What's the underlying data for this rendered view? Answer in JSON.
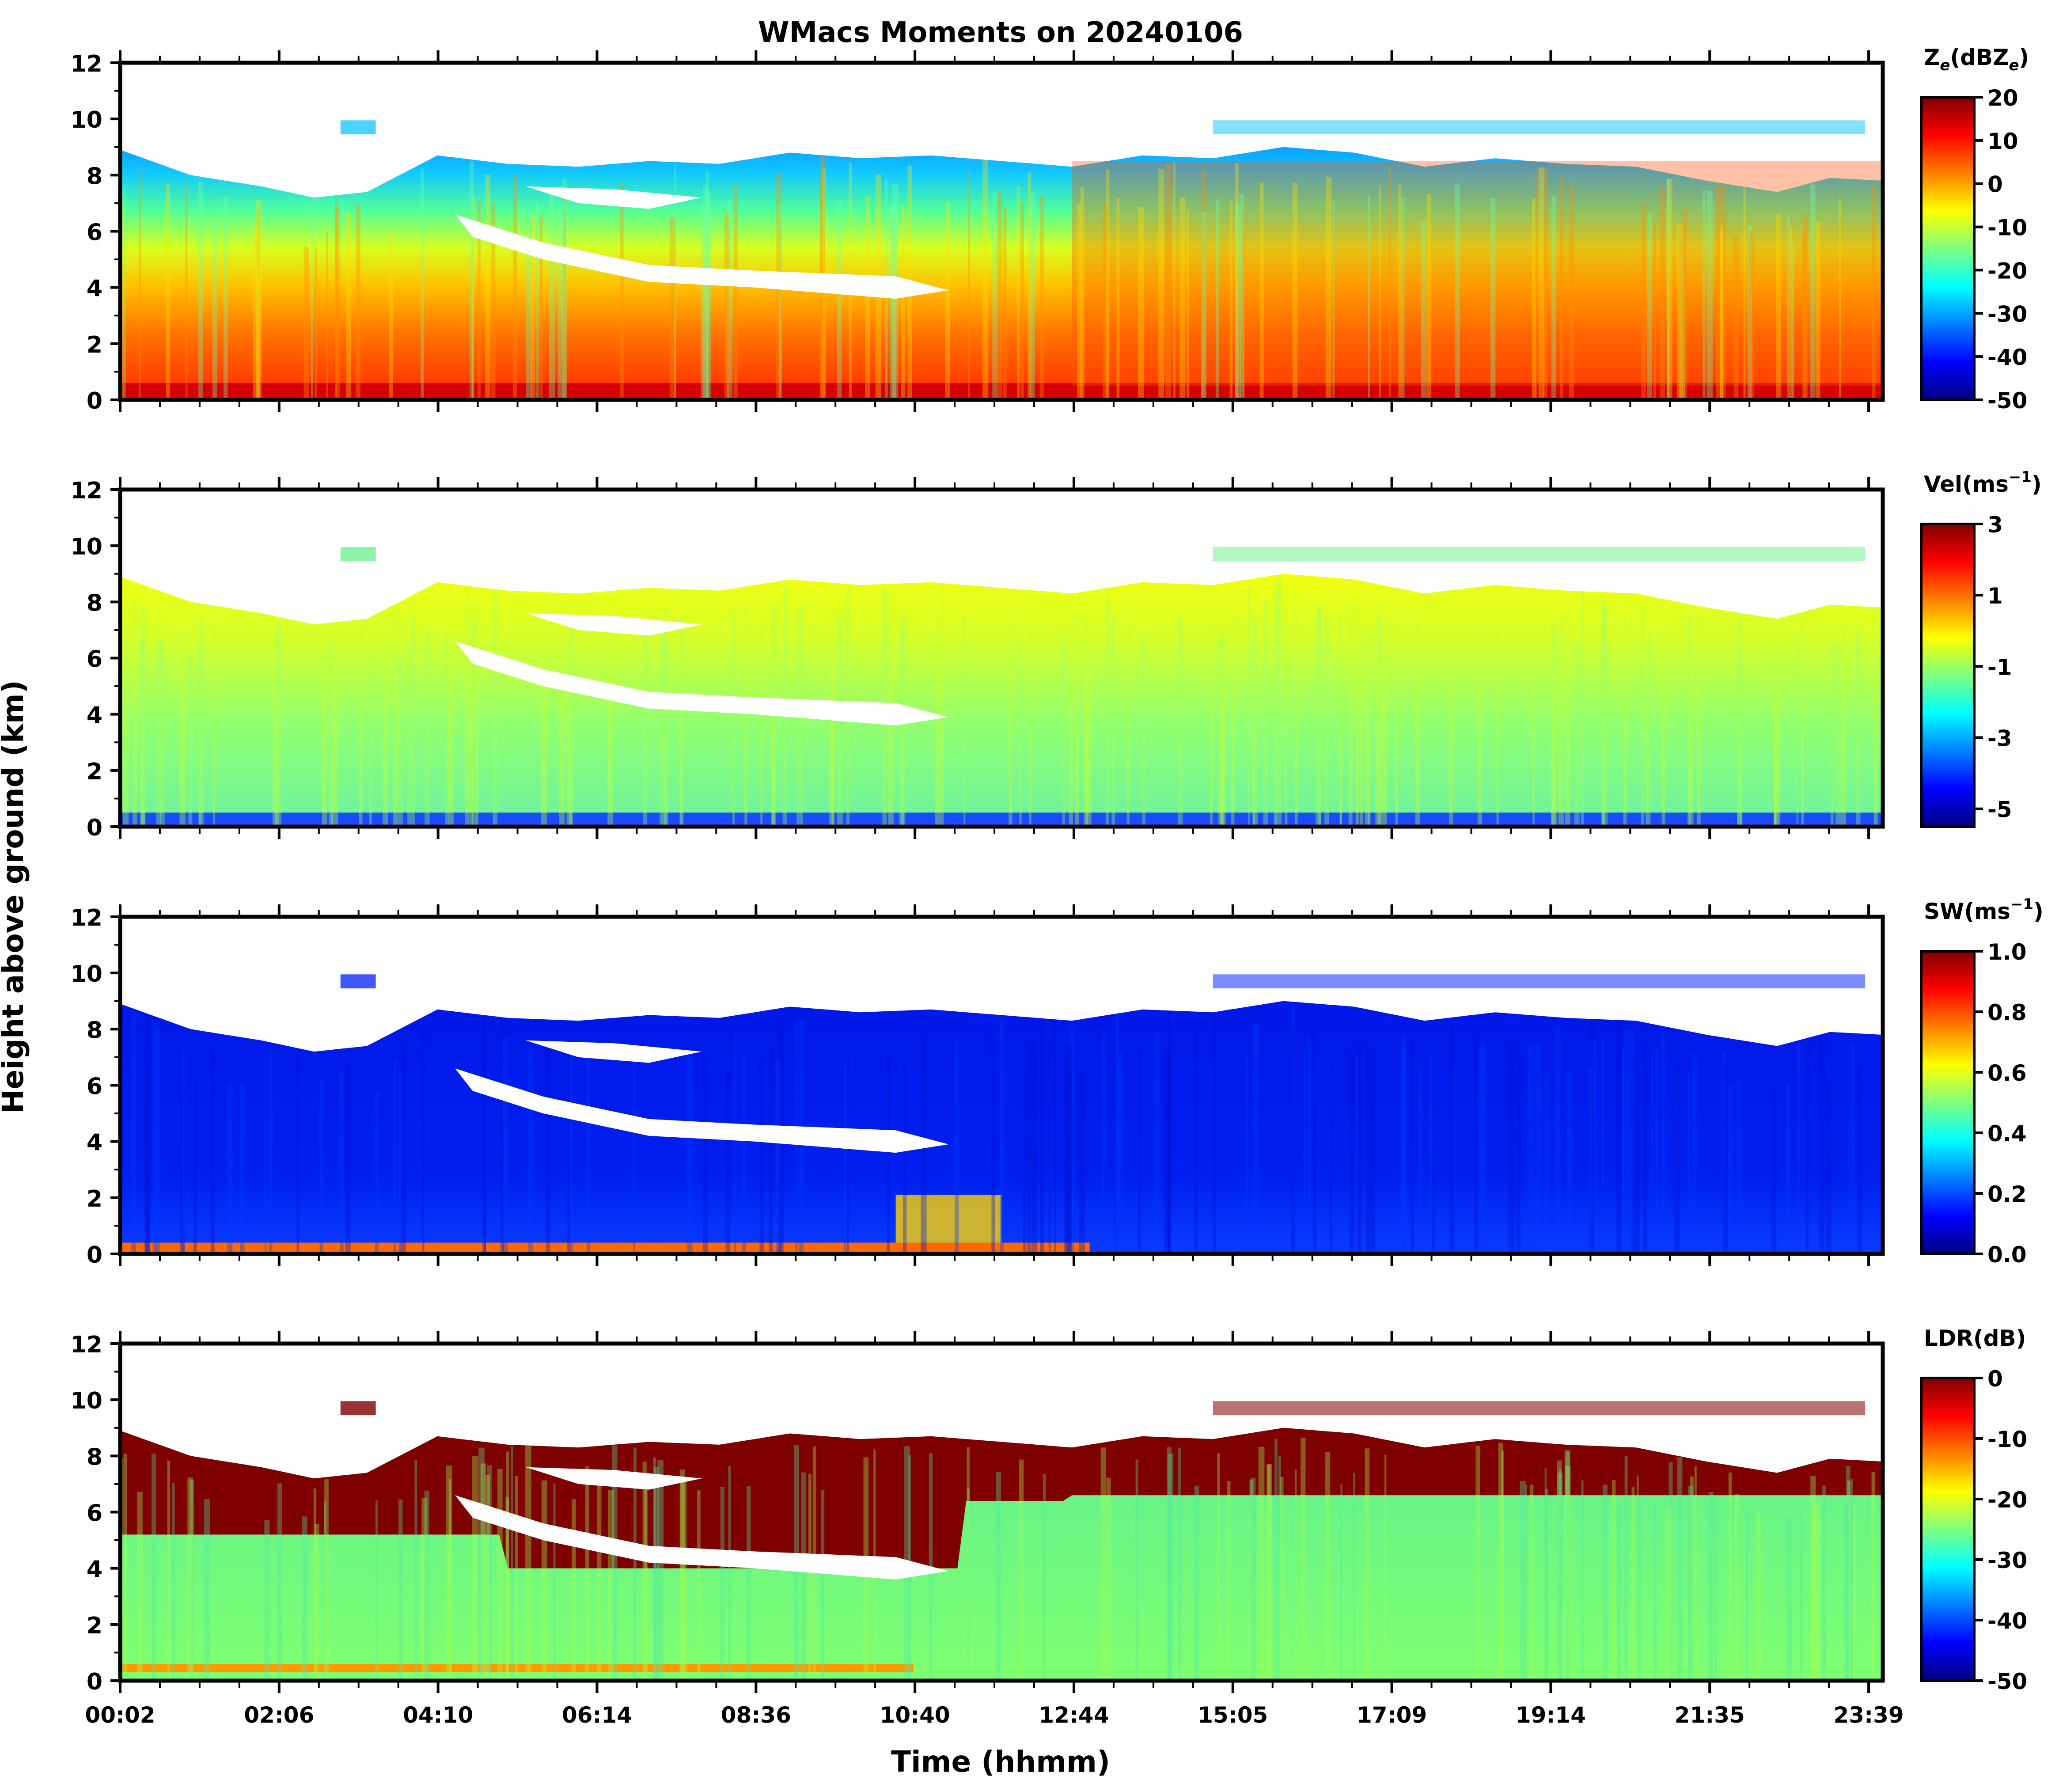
{
  "figure": {
    "title": "WMacs Moments on 20240106",
    "ylabel": "Height above ground (km)",
    "xlabel": "Time (hhmm)"
  },
  "colors": {
    "jet": [
      "#00007f",
      "#0000ff",
      "#007fff",
      "#00ffff",
      "#7fff7f",
      "#ffff00",
      "#ff7f00",
      "#ff0000",
      "#7f0000"
    ],
    "axis": "#000000",
    "background": "#ffffff"
  },
  "chart_data": [
    {
      "type": "heatmap",
      "name": "reflectivity",
      "colorbar": {
        "label_main": "Z",
        "label_sub": "e",
        "label_text": "(dBZ",
        "label_sub2": "e",
        "label_end": ")",
        "ticks": [
          "20",
          "10",
          "0",
          "-10",
          "-20",
          "-30",
          "-40",
          "-50"
        ],
        "range": [
          -50,
          20
        ]
      },
      "ylim": [
        0,
        12
      ],
      "y_ticks": [
        "0",
        "2",
        "4",
        "6",
        "8",
        "10",
        "12"
      ],
      "x_ticks": [],
      "profile": [
        {
          "t": 0.0,
          "top": 8.9
        },
        {
          "t": 0.04,
          "top": 8.0
        },
        {
          "t": 0.08,
          "top": 7.6
        },
        {
          "t": 0.11,
          "top": 7.2
        },
        {
          "t": 0.14,
          "top": 7.4
        },
        {
          "t": 0.18,
          "top": 8.7
        },
        {
          "t": 0.22,
          "top": 8.4
        },
        {
          "t": 0.26,
          "top": 8.3
        },
        {
          "t": 0.3,
          "top": 8.5
        },
        {
          "t": 0.34,
          "top": 8.4
        },
        {
          "t": 0.38,
          "top": 8.8
        },
        {
          "t": 0.42,
          "top": 8.6
        },
        {
          "t": 0.46,
          "top": 8.7
        },
        {
          "t": 0.5,
          "top": 8.5
        },
        {
          "t": 0.54,
          "top": 8.3
        },
        {
          "t": 0.58,
          "top": 8.7
        },
        {
          "t": 0.62,
          "top": 8.6
        },
        {
          "t": 0.66,
          "top": 9.0
        },
        {
          "t": 0.7,
          "top": 8.8
        },
        {
          "t": 0.74,
          "top": 8.3
        },
        {
          "t": 0.78,
          "top": 8.6
        },
        {
          "t": 0.82,
          "top": 8.4
        },
        {
          "t": 0.86,
          "top": 8.3
        },
        {
          "t": 0.9,
          "top": 7.8
        },
        {
          "t": 0.94,
          "top": 7.4
        },
        {
          "t": 0.97,
          "top": 7.9
        },
        {
          "t": 1.0,
          "top": 7.8
        }
      ]
    },
    {
      "type": "heatmap",
      "name": "velocity",
      "colorbar": {
        "label_main": "Vel(ms",
        "label_sup": "−1",
        "label_end": ")",
        "ticks": [
          "3",
          "1",
          "-1",
          "-3",
          "-5"
        ],
        "range": [
          -5.5,
          3
        ]
      },
      "ylim": [
        0,
        12
      ],
      "y_ticks": [
        "0",
        "2",
        "4",
        "6",
        "8",
        "10",
        "12"
      ],
      "x_ticks": []
    },
    {
      "type": "heatmap",
      "name": "spectrum_width",
      "colorbar": {
        "label_main": "SW(ms",
        "label_sup": "−1",
        "label_end": ")",
        "ticks": [
          "1.0",
          "0.8",
          "0.6",
          "0.4",
          "0.2",
          "0.0"
        ],
        "range": [
          0,
          1
        ]
      },
      "ylim": [
        0,
        12
      ],
      "y_ticks": [
        "0",
        "2",
        "4",
        "6",
        "8",
        "10",
        "12"
      ],
      "x_ticks": []
    },
    {
      "type": "heatmap",
      "name": "ldr",
      "colorbar": {
        "label_main": "LDR(dB)",
        "ticks": [
          "0",
          "-10",
          "-20",
          "-30",
          "-40",
          "-50"
        ],
        "range": [
          -50,
          0
        ]
      },
      "ylim": [
        0,
        12
      ],
      "y_ticks": [
        "0",
        "2",
        "4",
        "6",
        "8",
        "10",
        "12"
      ],
      "x_ticks": [
        "00:02",
        "02:06",
        "04:10",
        "06:14",
        "08:36",
        "10:40",
        "12:44",
        "15:05",
        "17:09",
        "19:14",
        "21:35",
        "23:39"
      ]
    }
  ]
}
